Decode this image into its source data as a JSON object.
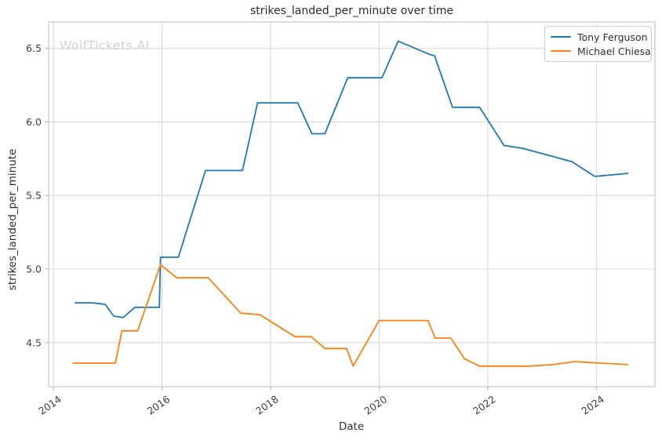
{
  "figure": {
    "watermark": "WolfTickets.AI"
  },
  "chart_data": {
    "type": "line",
    "title": "strikes_landed_per_minute over time",
    "xlabel": "Date",
    "ylabel": "strikes_landed_per_minute",
    "x_ticks": [
      "2014",
      "2016",
      "2018",
      "2020",
      "2022",
      "2024"
    ],
    "x_tick_values": [
      2014,
      2016,
      2018,
      2020,
      2022,
      2024
    ],
    "y_ticks": [
      "4.5",
      "5.0",
      "5.5",
      "6.0",
      "6.5"
    ],
    "y_tick_values": [
      4.5,
      5.0,
      5.5,
      6.0,
      6.5
    ],
    "xlim": [
      2013.91,
      2025.08
    ],
    "ylim": [
      4.2,
      6.68
    ],
    "grid": true,
    "legend_position": "upper right",
    "colors": {
      "grid": "#d9d9d9",
      "spine": "#c6c6c6",
      "tick": "#b7b7b7",
      "tick_label": "#3d3d3d"
    },
    "series": [
      {
        "name": "Tony Ferguson",
        "color": "#1f77b4",
        "x": [
          2014.4,
          2014.72,
          2014.95,
          2015.11,
          2015.28,
          2015.5,
          2015.95,
          2015.97,
          2016.3,
          2016.8,
          2017.48,
          2017.76,
          2018.5,
          2018.76,
          2019.0,
          2019.42,
          2020.05,
          2020.35,
          2020.92,
          2021.02,
          2021.35,
          2021.85,
          2022.3,
          2022.65,
          2023.55,
          2023.97,
          2024.58
        ],
        "values": [
          4.77,
          4.77,
          4.76,
          4.68,
          4.67,
          4.74,
          4.74,
          5.08,
          5.08,
          5.67,
          5.67,
          6.13,
          6.13,
          5.92,
          5.92,
          6.3,
          6.3,
          6.55,
          6.46,
          6.45,
          6.1,
          6.1,
          5.84,
          5.82,
          5.73,
          5.63,
          5.65
        ]
      },
      {
        "name": "Michael Chiesa",
        "color": "#ff7f0e",
        "x": [
          2014.36,
          2015.14,
          2015.26,
          2015.55,
          2015.97,
          2016.27,
          2016.85,
          2017.45,
          2017.8,
          2018.45,
          2018.75,
          2019.0,
          2019.4,
          2019.52,
          2020.0,
          2020.9,
          2021.03,
          2021.32,
          2021.57,
          2021.85,
          2022.75,
          2023.2,
          2023.6,
          2024.58
        ],
        "values": [
          4.36,
          4.36,
          4.58,
          4.58,
          5.03,
          4.94,
          4.94,
          4.7,
          4.69,
          4.54,
          4.54,
          4.46,
          4.46,
          4.34,
          4.65,
          4.65,
          4.53,
          4.53,
          4.39,
          4.34,
          4.34,
          4.35,
          4.37,
          4.35
        ]
      }
    ]
  }
}
